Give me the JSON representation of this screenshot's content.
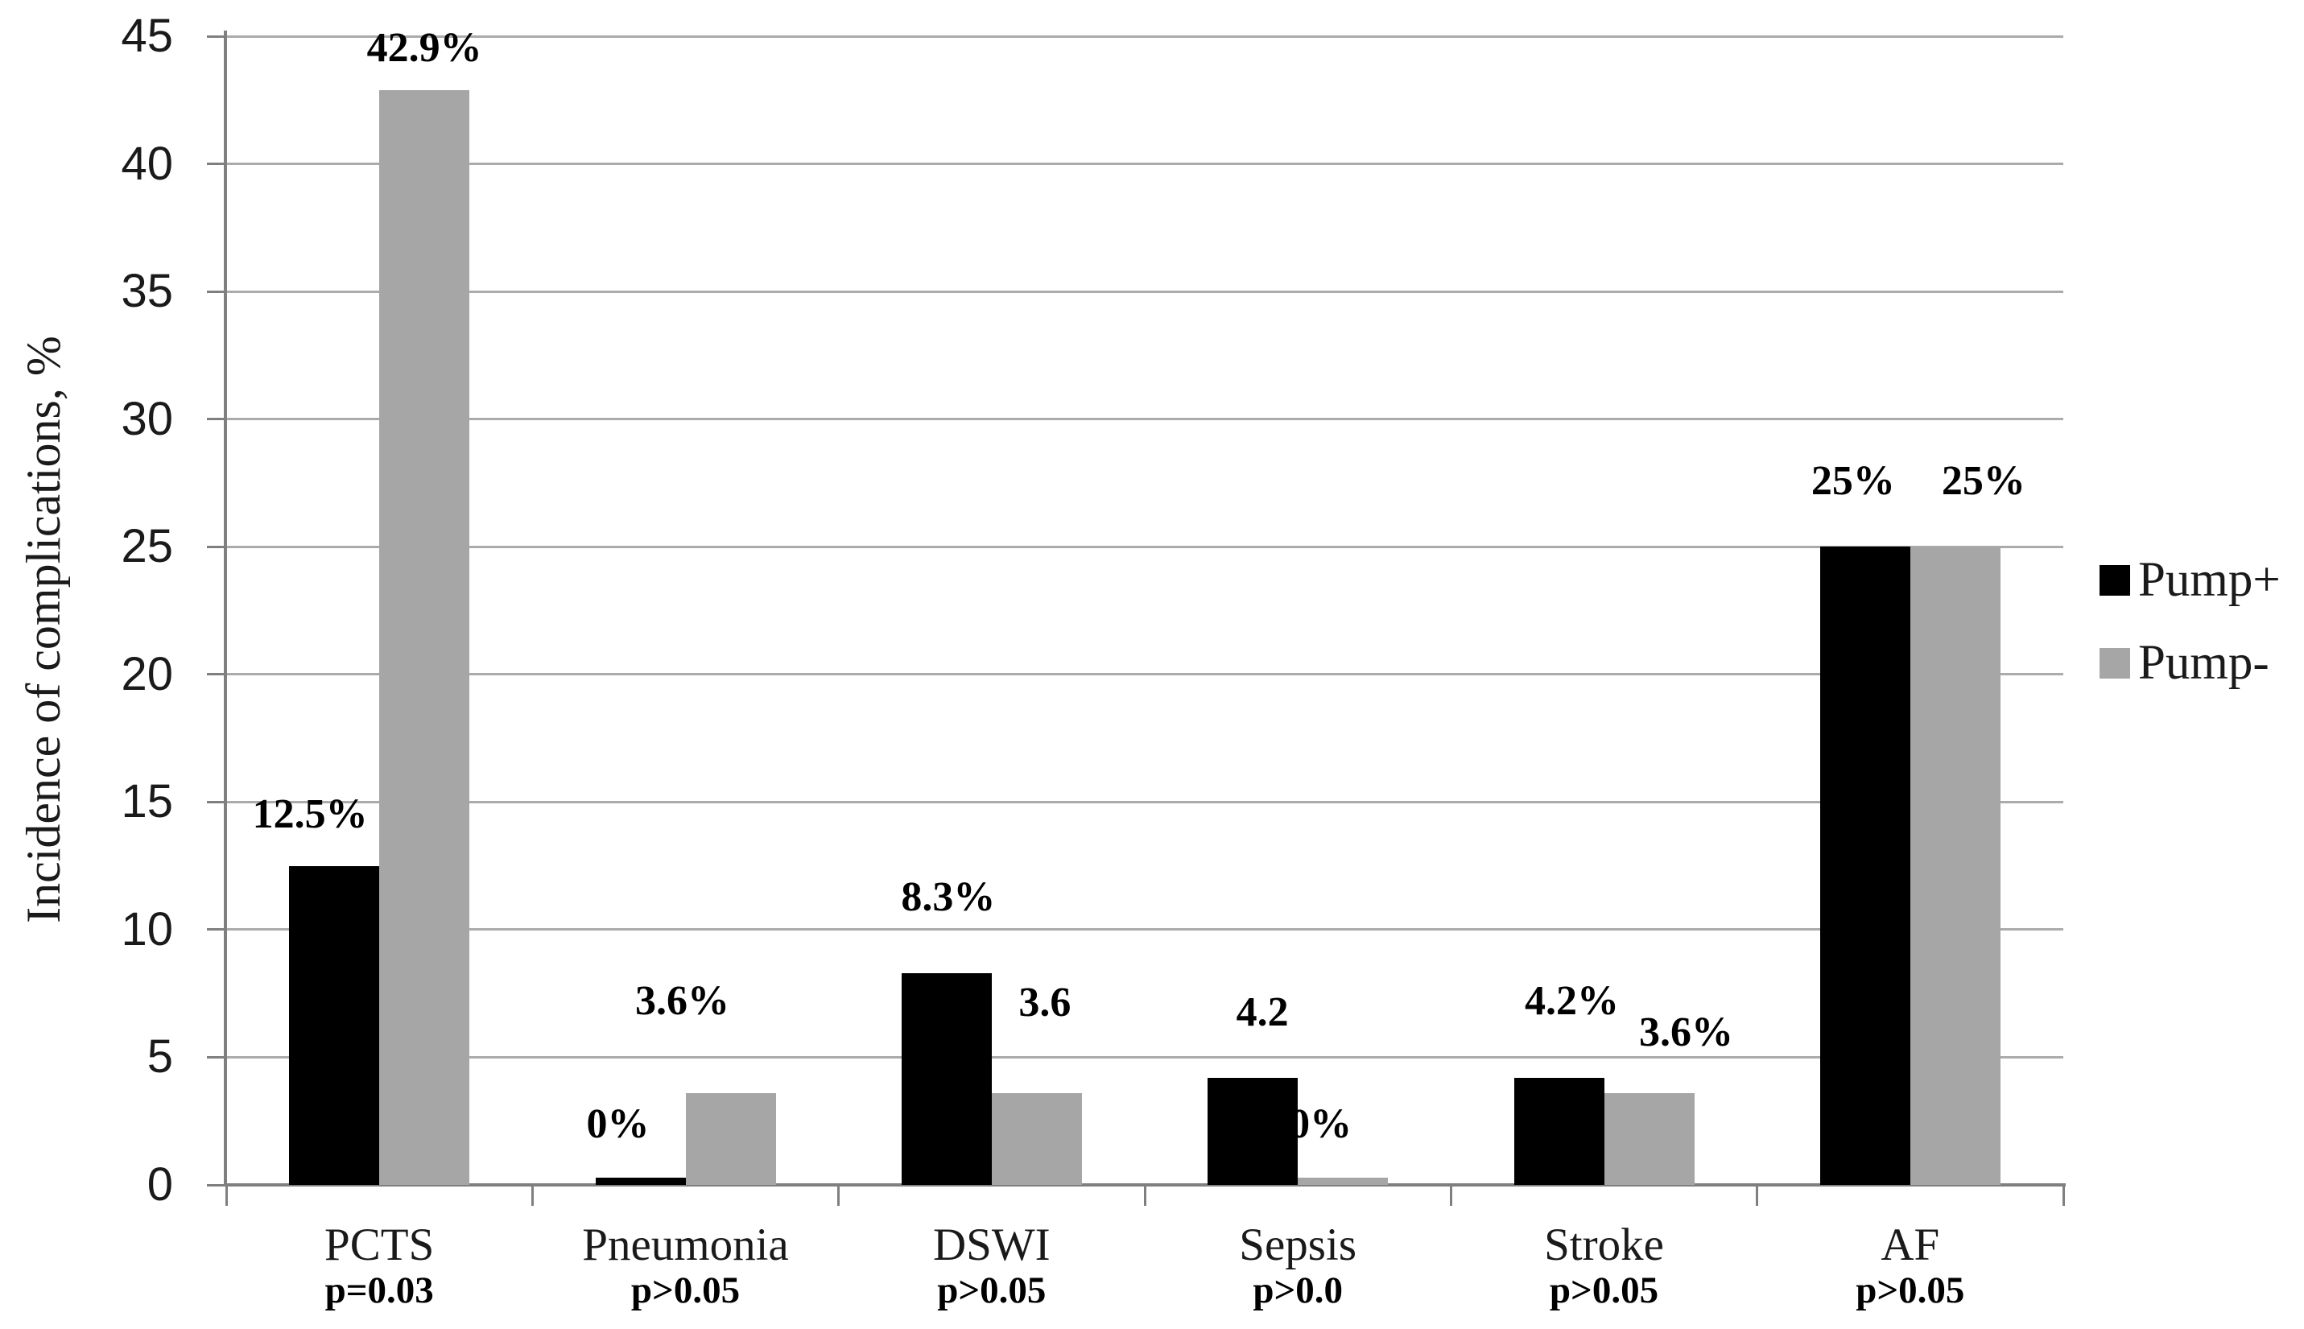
{
  "chart_data": {
    "type": "bar",
    "title": "",
    "xlabel": "",
    "ylabel": "Incidence of complications, %",
    "ylim": [
      0,
      45
    ],
    "ytick_step": 5,
    "ytick_labels": [
      "0",
      "5",
      "10",
      "15",
      "20",
      "25",
      "30",
      "35",
      "40",
      "45"
    ],
    "grid": true,
    "legend_position": "right",
    "categories": [
      "PCTS",
      "Pneumonia",
      "DSWI",
      "Sepsis",
      "Stroke",
      "AF"
    ],
    "p_value_labels": [
      "p=0.03",
      "p>0.05",
      "p>0.05",
      "p>0.0",
      "p>0.05",
      "p>0.05"
    ],
    "series": [
      {
        "name": "Pump+",
        "color": "#000000",
        "values": [
          12.5,
          0,
          8.3,
          4.2,
          4.2,
          25
        ],
        "value_labels": [
          "12.5%",
          "0%",
          "8.3%",
          "4.2",
          "4.2%",
          "25%"
        ]
      },
      {
        "name": "Pump-",
        "color": "#a6a6a6",
        "values": [
          42.9,
          3.6,
          3.6,
          0,
          3.6,
          25
        ],
        "value_labels": [
          "42.9%",
          "3.6%",
          "3.6",
          "0%",
          "3.6%",
          "25%"
        ]
      }
    ]
  },
  "colors": {
    "background": "#ffffff",
    "gridline": "#ababab",
    "axis": "#7f7f7f",
    "text": "#1a1a1a",
    "pump_plus": "#000000",
    "pump_minus": "#a6a6a6"
  }
}
